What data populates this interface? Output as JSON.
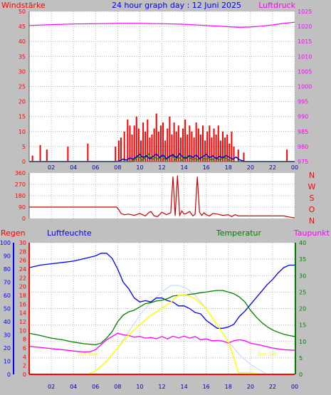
{
  "colors": {
    "background": "#c0c0c0",
    "plot_background": "#ffffff",
    "grid": "#b4b4b4",
    "wind": "#ff0000",
    "gust": "#ff0000",
    "wind_mean": "#0000cc",
    "wind_low": "#00a000",
    "pressure": "#ff00ff",
    "direction": "#cc0000",
    "rain": "#ff0000",
    "humidity": "#0000ff",
    "temperature": "#008000",
    "dewpoint": "#ff00ff",
    "solar": "#ffff00",
    "solar_max": "#c8dcff",
    "sun_marker": "#ffff00"
  },
  "chart_data": [
    {
      "type": "bar",
      "title": "24 hour graph day : 12 Juni 2025",
      "left_label": "Windstärke",
      "right_label": "Luftdruck",
      "x_ticks": [
        "02",
        "04",
        "06",
        "08",
        "10",
        "12",
        "14",
        "16",
        "18",
        "20",
        "22",
        "00"
      ],
      "x_range_hours": [
        0,
        24
      ],
      "y_left_ticks": [
        "0",
        "5",
        "10",
        "15",
        "20",
        "25",
        "30",
        "35",
        "40",
        "45",
        "50"
      ],
      "y_left_range": [
        0,
        50
      ],
      "y_right_ticks": [
        "975",
        "980",
        "985",
        "990",
        "995",
        "1000",
        "1005",
        "1010",
        "1015",
        "1020",
        "1025"
      ],
      "y_right_range": [
        975,
        1025
      ],
      "grid": true,
      "series": [
        {
          "name": "Windstärke",
          "kind": "gust_bars",
          "hours": [
            0.3,
            1.0,
            1.6,
            3.5,
            5.3,
            7.8,
            8.1,
            8.3,
            8.6,
            8.9,
            9.1,
            9.3,
            9.5,
            9.7,
            9.9,
            10.1,
            10.3,
            10.5,
            10.7,
            10.9,
            11.1,
            11.3,
            11.5,
            11.7,
            11.9,
            12.1,
            12.3,
            12.5,
            12.7,
            12.9,
            13.1,
            13.3,
            13.5,
            13.7,
            13.9,
            14.1,
            14.3,
            14.5,
            14.7,
            14.9,
            15.1,
            15.3,
            15.5,
            15.7,
            15.9,
            16.1,
            16.3,
            16.5,
            16.7,
            16.9,
            17.1,
            17.3,
            17.5,
            17.7,
            17.9,
            18.1,
            18.3,
            18.5,
            18.9,
            19.4,
            23.3
          ],
          "values": [
            2,
            5.5,
            4,
            5,
            6,
            5,
            7,
            8,
            10,
            14,
            12,
            9,
            12,
            15,
            11,
            7,
            13,
            10,
            14,
            8,
            9,
            11,
            16,
            10,
            12,
            13,
            7,
            11,
            15,
            9,
            13,
            10,
            12,
            8,
            11,
            14,
            9,
            12,
            10,
            8,
            13,
            11,
            9,
            12,
            7,
            10,
            12,
            8,
            11,
            9,
            12,
            7,
            10,
            8,
            9,
            6,
            10,
            5,
            4,
            3,
            4
          ]
        },
        {
          "name": "Windstärke (Mittel)",
          "kind": "line",
          "hours": [
            0,
            7.9,
            8.2,
            8.5,
            8.8,
            9.1,
            9.4,
            9.7,
            10.0,
            10.3,
            10.6,
            10.9,
            11.2,
            11.5,
            11.8,
            12.1,
            12.4,
            12.7,
            13.0,
            13.3,
            13.6,
            13.9,
            14.2,
            14.5,
            14.8,
            15.1,
            15.4,
            15.7,
            16.0,
            16.3,
            16.6,
            16.9,
            17.2,
            17.5,
            17.8,
            18.1,
            18.4,
            18.7,
            19.0,
            19.5,
            24
          ],
          "values": [
            0,
            0,
            0.3,
            0.8,
            0.5,
            1.2,
            0.8,
            1.6,
            2.4,
            1.3,
            2.0,
            0.9,
            1.7,
            2.5,
            1.4,
            2.2,
            1.0,
            1.8,
            2.3,
            1.2,
            2.6,
            1.5,
            1.1,
            2.0,
            1.4,
            2.2,
            1.0,
            1.6,
            2.4,
            1.3,
            1.9,
            1.0,
            1.7,
            1.3,
            2.0,
            1.4,
            0.8,
            1.5,
            0.6,
            0,
            0
          ]
        },
        {
          "name": "Windstärke (niedrig)",
          "kind": "line",
          "hours": [
            0,
            9.3,
            9.6,
            9.9,
            10.2,
            10.5,
            10.8,
            11.1,
            11.4,
            11.7,
            12.0,
            12.3,
            12.6,
            12.9,
            13.2,
            13.5,
            13.8,
            14.1,
            14.4,
            14.7,
            15.0,
            15.3,
            15.6,
            15.9,
            16.2,
            16.5,
            16.8,
            17.1,
            17.4,
            17.7,
            18.0,
            18.3,
            24
          ],
          "values": [
            0,
            0,
            0.8,
            1.8,
            0.5,
            1.2,
            2.5,
            0.6,
            1.4,
            0.7,
            1.9,
            0.5,
            1.2,
            2.2,
            0.6,
            1.5,
            0.5,
            1.3,
            2.0,
            0.6,
            1.0,
            0.5,
            1.5,
            0.7,
            1.1,
            0.5,
            1.3,
            0.6,
            0.9,
            1.4,
            0.5,
            0,
            0
          ]
        },
        {
          "name": "Luftdruck",
          "kind": "line",
          "axis": "right",
          "hours": [
            0,
            2,
            4,
            6,
            8,
            10,
            12,
            14,
            16,
            18,
            19,
            20,
            21,
            22,
            23,
            24
          ],
          "values": [
            1020.3,
            1020.6,
            1020.8,
            1020.9,
            1021.0,
            1021.0,
            1020.9,
            1020.7,
            1020.3,
            1019.9,
            1019.7,
            1019.8,
            1020.1,
            1020.5,
            1021.0,
            1021.4
          ]
        }
      ]
    },
    {
      "type": "line",
      "right_labels": [
        "N",
        "W",
        "S",
        "O",
        "N"
      ],
      "y_left_ticks": [
        "0",
        "90",
        "180",
        "270",
        "360"
      ],
      "y_range": [
        0,
        360
      ],
      "grid": true,
      "series": [
        {
          "name": "Windrichtung",
          "hours": [
            0,
            7.9,
            8.1,
            8.3,
            8.6,
            9.0,
            9.5,
            10.0,
            10.5,
            10.8,
            11.0,
            11.3,
            11.6,
            12.0,
            12.4,
            12.8,
            13.0,
            13.2,
            13.4,
            13.6,
            13.8,
            14.0,
            14.2,
            14.5,
            14.8,
            15.0,
            15.2,
            15.4,
            15.6,
            15.8,
            16.0,
            16.3,
            16.6,
            17.0,
            17.5,
            18.0,
            18.3,
            18.6,
            18.9,
            19.2,
            20,
            21,
            22,
            23,
            23.6,
            24
          ],
          "values": [
            90,
            90,
            70,
            40,
            30,
            35,
            25,
            40,
            20,
            45,
            55,
            20,
            15,
            50,
            30,
            45,
            330,
            20,
            340,
            25,
            60,
            35,
            40,
            55,
            20,
            35,
            330,
            50,
            25,
            45,
            30,
            20,
            40,
            35,
            25,
            30,
            15,
            30,
            20,
            20,
            20,
            20,
            20,
            20,
            10,
            5
          ]
        }
      ]
    },
    {
      "type": "line",
      "left_label_1": "Regen",
      "left_label_2": "Luftfeuchte",
      "right_label_1": "Temperatur",
      "right_label_2": "Taupunkt",
      "x_ticks": [
        "02",
        "04",
        "06",
        "08",
        "10",
        "12",
        "14",
        "16",
        "18",
        "20",
        "22",
        "00"
      ],
      "y_humidity_ticks": [
        "0",
        "10",
        "20",
        "30",
        "40",
        "50",
        "60",
        "70",
        "80",
        "90",
        "100"
      ],
      "y_humidity_range": [
        0,
        100
      ],
      "y_rain_ticks": [
        "0",
        "2",
        "4",
        "6",
        "8",
        "10",
        "12",
        "14",
        "16",
        "18",
        "20",
        "22",
        "24",
        "26",
        "28",
        "30"
      ],
      "y_rain_range": [
        0,
        30
      ],
      "y_temp_ticks": [
        "0",
        "5",
        "10",
        "15",
        "20",
        "25",
        "30",
        "35",
        "40"
      ],
      "y_temp_range": [
        0,
        40
      ],
      "grid": true,
      "annotations": [
        {
          "text": "Sun Rise",
          "hour": 5.3
        },
        {
          "text": "Sun Set",
          "hour": 21.5
        }
      ],
      "series": [
        {
          "name": "Luftfeuchte",
          "axis": "humidity",
          "hours": [
            0,
            1,
            2,
            3,
            4,
            5,
            6,
            6.5,
            7,
            7.5,
            8,
            8.5,
            9,
            9.5,
            10,
            10.5,
            11,
            11.5,
            12,
            12.5,
            13,
            13.5,
            14,
            14.5,
            15,
            15.5,
            16,
            16.5,
            17,
            17.5,
            18,
            18.5,
            19,
            19.5,
            20,
            20.5,
            21,
            21.5,
            22,
            22.5,
            23,
            23.5,
            24
          ],
          "values": [
            81,
            83,
            84,
            85,
            86,
            88,
            90,
            92,
            92,
            88,
            80,
            70,
            65,
            58,
            55,
            56,
            55,
            58,
            58,
            56,
            55,
            52,
            52,
            50,
            47,
            46,
            41,
            38,
            35,
            35,
            36,
            38,
            44,
            48,
            53,
            58,
            63,
            68,
            72,
            77,
            81,
            83,
            83
          ]
        },
        {
          "name": "Solar (max)",
          "axis": "temperature",
          "hours": [
            5.3,
            6,
            7,
            8,
            9,
            10,
            11,
            12,
            12.8,
            13.5,
            14.3,
            15,
            16,
            17,
            18,
            19,
            20,
            21,
            21.5
          ],
          "values": [
            0,
            1,
            4,
            8,
            13,
            18,
            22,
            25,
            27,
            27,
            26,
            24,
            20,
            15,
            10,
            6,
            3,
            1,
            0
          ]
        },
        {
          "name": "Solar",
          "axis": "temperature",
          "hours": [
            0,
            5.3,
            6,
            7,
            8,
            9,
            10,
            11,
            12,
            12.8,
            13.5,
            14.3,
            15,
            16,
            17,
            18,
            18.6,
            18.9,
            19.4,
            20,
            20.5,
            21,
            22,
            24
          ],
          "values": [
            0,
            0,
            1,
            4,
            8,
            12,
            15,
            18,
            20,
            22,
            24,
            24,
            23,
            20,
            15,
            10,
            4,
            0.5,
            0.5,
            0.5,
            0.2,
            0,
            0,
            0
          ]
        },
        {
          "name": "Temperatur",
          "axis": "temperature",
          "hours": [
            0,
            1,
            2,
            3,
            4,
            5,
            6,
            6.5,
            7,
            7.5,
            8,
            8.5,
            9,
            9.5,
            10,
            10.5,
            11,
            11.5,
            12,
            12.5,
            13,
            13.5,
            14,
            14.5,
            15,
            15.5,
            16,
            16.5,
            17,
            17.5,
            18,
            18.5,
            19,
            19.5,
            20,
            20.5,
            21,
            21.5,
            22,
            22.5,
            23,
            23.5,
            24
          ],
          "values": [
            12.5,
            11.8,
            11.0,
            10.5,
            9.8,
            9.3,
            9.0,
            9.5,
            11,
            13,
            16,
            18,
            19,
            19.5,
            20.5,
            21.5,
            21.8,
            22.3,
            22.5,
            23,
            23.8,
            24,
            24,
            24.3,
            24.5,
            24.8,
            25,
            25.3,
            25.5,
            25.5,
            25,
            24.5,
            23.5,
            22,
            19.5,
            17.5,
            15.8,
            14.5,
            13.5,
            12.8,
            12.2,
            11.8,
            11.5
          ]
        },
        {
          "name": "Taupunkt",
          "axis": "temperature",
          "hours": [
            0,
            1,
            2,
            3,
            4,
            5,
            5.5,
            6,
            6.5,
            7,
            7.5,
            8,
            8.5,
            9,
            9.5,
            10,
            10.5,
            11,
            11.5,
            12,
            12.5,
            13,
            13.5,
            14,
            14.5,
            15,
            15.5,
            16,
            16.5,
            17,
            17.5,
            18,
            18.5,
            19,
            19.5,
            20,
            21,
            22,
            23,
            24
          ],
          "values": [
            8.5,
            8.2,
            7.8,
            7.5,
            7.1,
            6.8,
            6.9,
            7.5,
            9,
            10.5,
            11.5,
            12.5,
            12,
            11.8,
            11.3,
            11.5,
            11,
            11.2,
            10.8,
            11.5,
            10.8,
            11.6,
            11.1,
            11.6,
            11,
            11.5,
            10.5,
            10.8,
            10.2,
            10.3,
            10.1,
            9.5,
            10.2,
            10.5,
            10.2,
            9.5,
            8.8,
            8,
            7.5,
            7.3
          ]
        },
        {
          "name": "Regen",
          "axis": "rain",
          "hours": [
            0,
            24
          ],
          "values": [
            0,
            0
          ]
        }
      ]
    }
  ]
}
